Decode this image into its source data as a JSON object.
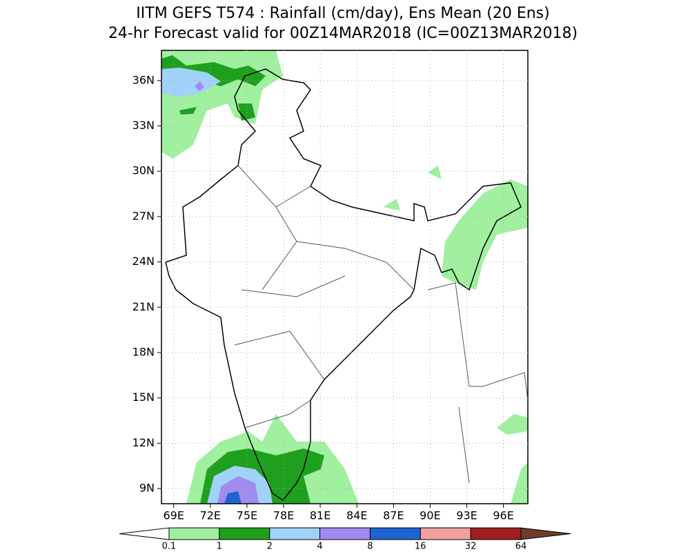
{
  "chart_data": {
    "type": "map",
    "title": [
      "IITM GEFS T574 : Rainfall (cm/day), Ens Mean (20 Ens)",
      "24-hr Forecast valid for 00Z14MAR2018 (IC=00Z13MAR2018)"
    ],
    "xlim": [
      68,
      98
    ],
    "ylim": [
      8,
      38
    ],
    "xticks": [
      {
        "value": 69,
        "label": "69E"
      },
      {
        "value": 72,
        "label": "72E"
      },
      {
        "value": 75,
        "label": "75E"
      },
      {
        "value": 78,
        "label": "78E"
      },
      {
        "value": 81,
        "label": "81E"
      },
      {
        "value": 84,
        "label": "84E"
      },
      {
        "value": 87,
        "label": "87E"
      },
      {
        "value": 90,
        "label": "90E"
      },
      {
        "value": 93,
        "label": "93E"
      },
      {
        "value": 96,
        "label": "96E"
      }
    ],
    "yticks": [
      {
        "value": 9,
        "label": "9N"
      },
      {
        "value": 12,
        "label": "12N"
      },
      {
        "value": 15,
        "label": "15N"
      },
      {
        "value": 18,
        "label": "18N"
      },
      {
        "value": 21,
        "label": "21N"
      },
      {
        "value": 24,
        "label": "24N"
      },
      {
        "value": 27,
        "label": "27N"
      },
      {
        "value": 30,
        "label": "30N"
      },
      {
        "value": 33,
        "label": "33N"
      },
      {
        "value": 36,
        "label": "36N"
      }
    ],
    "grid": true,
    "colorbar": {
      "bounds": [
        0.1,
        1,
        2,
        4,
        8,
        16,
        32,
        64
      ],
      "colors": [
        "#ffffff",
        "#a0f0a0",
        "#1ea01e",
        "#a0d2fa",
        "#a08cf0",
        "#1e64d2",
        "#f0a0a0",
        "#a01e1e",
        "#6e3c28"
      ]
    }
  }
}
